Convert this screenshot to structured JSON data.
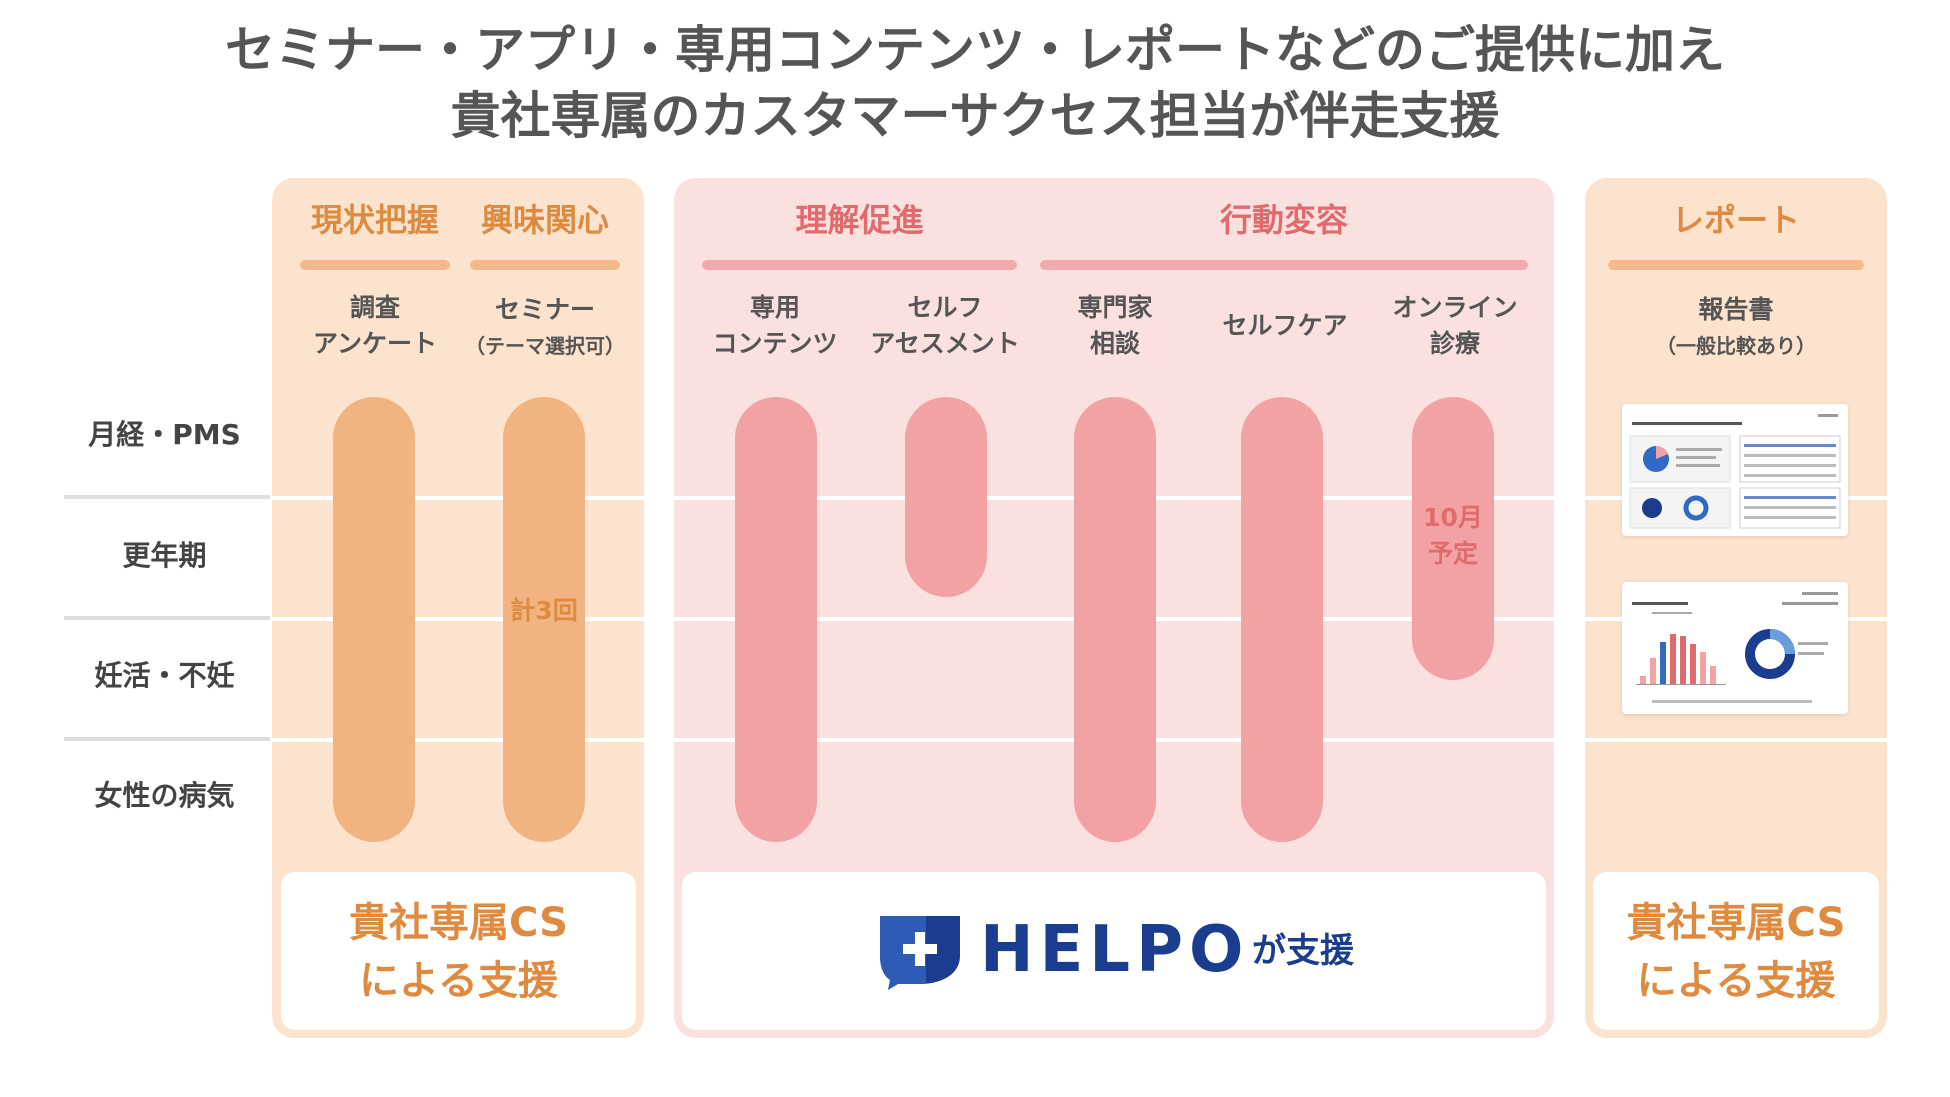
{
  "title": {
    "line1": "セミナー・アプリ・専用コンテンツ・レポートなどのご提供に加え",
    "line2": "貴社専属のカスタマーサクセス担当が伴走支援"
  },
  "rows": [
    "月経・PMS",
    "更年期",
    "妊活・不妊",
    "女性の病気"
  ],
  "left_panel": {
    "headers": [
      "現状把握",
      "興味関心"
    ],
    "columns": [
      {
        "line1": "調査",
        "line2": "アンケート"
      },
      {
        "line1": "セミナー",
        "line2": "（テーマ選択可）"
      }
    ],
    "seminar_note": "計3回",
    "support_line1": "貴社専属CS",
    "support_line2": "による支援"
  },
  "mid_panel": {
    "headers": [
      "理解促進",
      "行動変容"
    ],
    "columns": [
      {
        "line1": "専用",
        "line2": "コンテンツ"
      },
      {
        "line1": "セルフ",
        "line2": "アセスメント"
      },
      {
        "line1": "専門家",
        "line2": "相談"
      },
      {
        "line1": "セルフケア",
        "line2": ""
      },
      {
        "line1": "オンライン",
        "line2": "診療"
      }
    ],
    "online_note_line1": "10月",
    "online_note_line2": "予定",
    "logo_text": "HELPO",
    "logo_suffix": "が支援"
  },
  "right_panel": {
    "header": "レポート",
    "column": {
      "line1": "報告書",
      "line2": "（一般比較あり）"
    },
    "support_line1": "貴社専属CS",
    "support_line2": "による支援"
  },
  "colors": {
    "orange_accent": "#de8a3f",
    "pink_accent": "#e06a6c",
    "orange_bar": "#f1b37f",
    "pink_bar": "#f2a2a4",
    "brand_blue": "#1a3d8f"
  }
}
